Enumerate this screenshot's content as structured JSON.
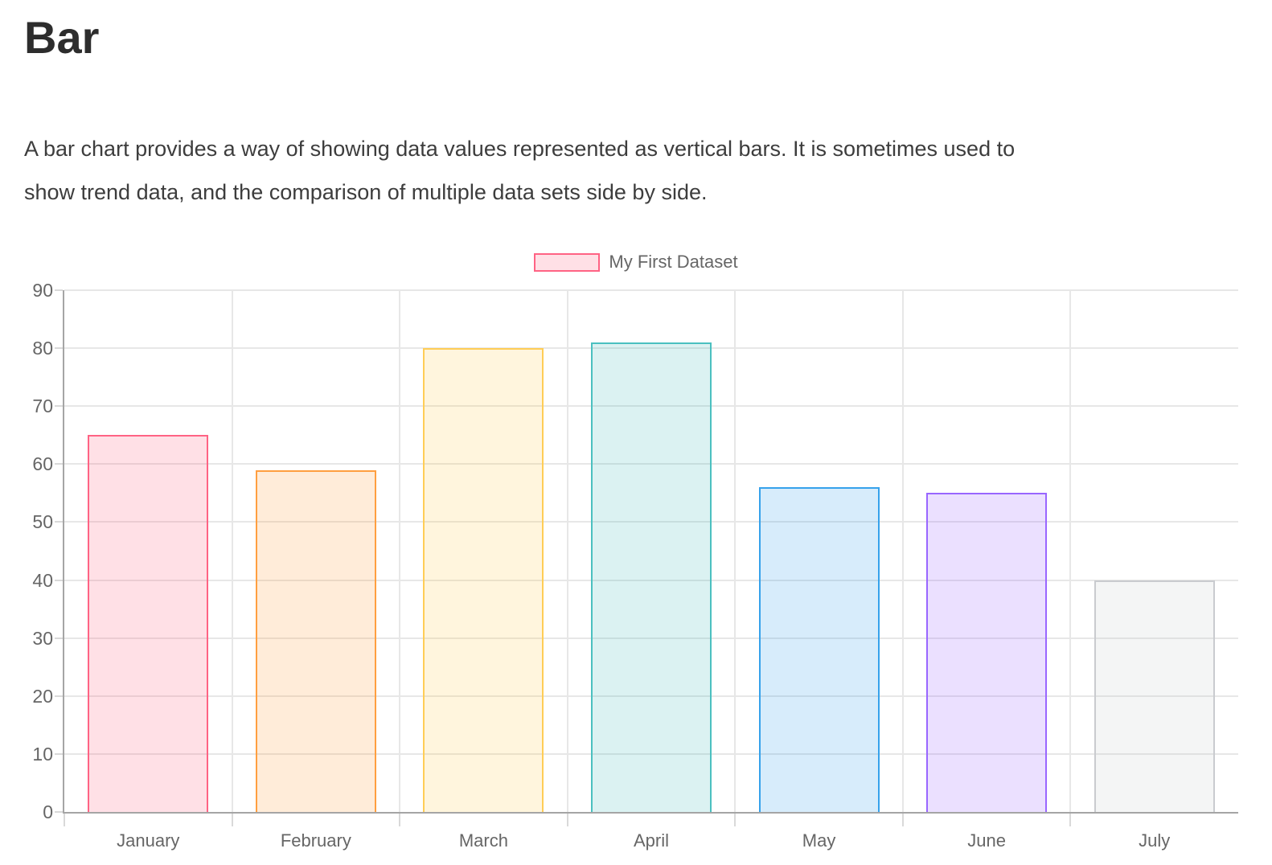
{
  "page": {
    "title": "Bar",
    "description": "A bar chart provides a way of showing data values represented as vertical bars. It is sometimes used to\nshow trend data, and the comparison of multiple data sets side by side."
  },
  "chart_data": {
    "type": "bar",
    "title": "",
    "categories": [
      "January",
      "February",
      "March",
      "April",
      "May",
      "June",
      "July"
    ],
    "series": [
      {
        "name": "My First Dataset",
        "values": [
          65,
          59,
          80,
          81,
          56,
          55,
          40
        ],
        "backgroundColors": [
          "rgba(255, 99, 132, 0.2)",
          "rgba(255, 159, 64, 0.2)",
          "rgba(255, 205, 86, 0.2)",
          "rgba(75, 192, 192, 0.2)",
          "rgba(54, 162, 235, 0.2)",
          "rgba(153, 102, 255, 0.2)",
          "rgba(201, 203, 207, 0.2)"
        ],
        "borderColors": [
          "#FF6384",
          "#FF9F40",
          "#FFCD56",
          "#4BC0C0",
          "#36A2EB",
          "#9966FF",
          "#C9CBCF"
        ]
      }
    ],
    "xlabel": "",
    "ylabel": "",
    "ylim": [
      0,
      90
    ],
    "yticks": [
      0,
      10,
      20,
      30,
      40,
      50,
      60,
      70,
      80,
      90
    ],
    "grid": true,
    "legend_position": "top",
    "axis_style": {
      "grid_color": "#E7E7E7",
      "axis_line_color": "#A5A5A5",
      "tick_label_color": "#666666"
    }
  }
}
